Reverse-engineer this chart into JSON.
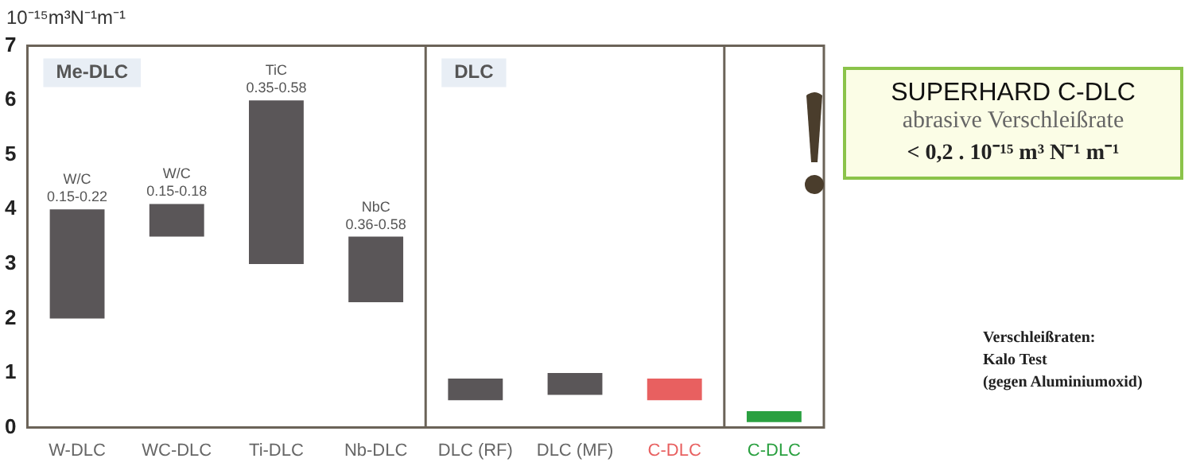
{
  "chart_data": {
    "type": "bar",
    "ylabel": "10⁻¹⁵m³N⁻¹m⁻¹",
    "categories": [
      "W-DLC",
      "WC-DLC",
      "Ti-DLC",
      "Nb-DLC",
      "DLC (RF)",
      "DLC (MF)",
      "C-DLC",
      "C-DLC"
    ],
    "base": [
      2.0,
      3.5,
      3.0,
      2.3,
      0.5,
      0.6,
      0.5,
      0.1
    ],
    "values": [
      2.0,
      0.6,
      3.0,
      1.2,
      0.4,
      0.4,
      0.4,
      0.2
    ],
    "colors": [
      "#5a5658",
      "#5a5658",
      "#5a5658",
      "#5a5658",
      "#5a5658",
      "#5a5658",
      "#e86060",
      "#2aa040"
    ],
    "ylim": [
      0,
      7
    ],
    "yticks": [
      0,
      1,
      2,
      3,
      4,
      5,
      6,
      7
    ],
    "grid": false,
    "legend": false,
    "annotations": [
      "Me-DLC",
      "DLC",
      {
        "text": "W/C\n0.15-0.22",
        "x": "W-DLC",
        "y": 4.0
      },
      {
        "text": "W/C\n0.15-0.18",
        "x": "WC-DLC",
        "y": 4.1
      },
      {
        "text": "TiC\n0.35-0.58",
        "x": "Ti-DLC",
        "y": 6.0
      },
      {
        "text": "NbC\n0.36-0.58",
        "x": "Nb-DLC",
        "y": 3.5
      },
      "SUPERHARD C-DLC\nabrasive Verschleißrate\n< 0,2 . 10⁻¹⁵  m³ N⁻¹ m⁻¹",
      "Verschleißraten:\nKalo Test\n(gegen Aluminiumoxid)"
    ]
  }
}
